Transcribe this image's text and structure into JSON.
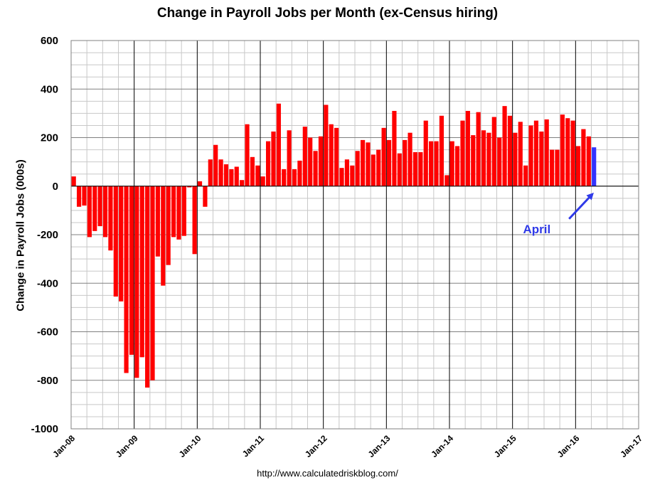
{
  "chart_data": {
    "type": "bar",
    "title": "Change in Payroll Jobs per Month (ex-Census hiring)",
    "ylabel": "Change in Payroll Jobs (000s)",
    "xlabel": "",
    "ylim": [
      -1000,
      600
    ],
    "y_ticks": [
      "600",
      "400",
      "200",
      "0",
      "-200",
      "-400",
      "-600",
      "-800",
      "-1000"
    ],
    "x_ticks": [
      "Jan-08",
      "Jan-09",
      "Jan-10",
      "Jan-11",
      "Jan-12",
      "Jan-13",
      "Jan-14",
      "Jan-15",
      "Jan-16",
      "Jan-17"
    ],
    "x_start": "Jan-08",
    "x_end": "Jan-17",
    "grid": true,
    "colors": {
      "bar": "#ff0000",
      "highlight": "#3333ff",
      "annotation": "#2f3ae8",
      "grid": "#c8c8c8",
      "year_line": "#000000"
    },
    "annotation": {
      "text": "April",
      "points_to": "Apr-16"
    },
    "values": [
      40,
      -85,
      -80,
      -210,
      -185,
      -165,
      -210,
      -265,
      -455,
      -475,
      -770,
      -695,
      -790,
      -705,
      -830,
      -800,
      -290,
      -410,
      -325,
      -210,
      -220,
      -205,
      -5,
      -280,
      20,
      -85,
      110,
      170,
      110,
      90,
      70,
      80,
      25,
      255,
      120,
      85,
      40,
      185,
      225,
      340,
      70,
      230,
      70,
      105,
      245,
      200,
      145,
      205,
      335,
      255,
      240,
      75,
      110,
      85,
      145,
      190,
      180,
      130,
      150,
      240,
      190,
      310,
      135,
      190,
      220,
      140,
      140,
      270,
      185,
      185,
      290,
      45,
      185,
      165,
      270,
      310,
      210,
      305,
      230,
      220,
      285,
      200,
      330,
      290,
      220,
      265,
      85,
      250,
      270,
      225,
      275,
      150,
      150,
      295,
      280,
      270,
      165,
      235,
      205,
      160
    ]
  },
  "source": "http://www.calculatedriskblog.com/"
}
